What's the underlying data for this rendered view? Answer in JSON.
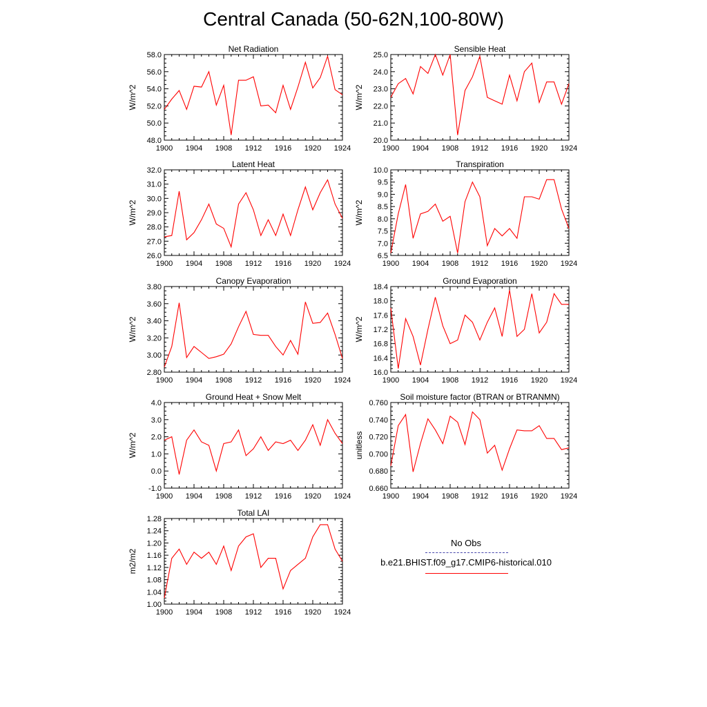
{
  "page_title": "Central Canada (50-62N,100-80W)",
  "legend": {
    "obs_label": "No Obs",
    "obs_color": "#4444aa",
    "model_label": "b.e21.BHIST.f09_g17.CMIP6-historical.010",
    "model_color": "#ff0000"
  },
  "chart_data": [
    {
      "type": "line",
      "title": "Net Radiation",
      "ylabel": "W/m^2",
      "xlim": [
        1900,
        1924
      ],
      "ylim": [
        48.0,
        58.0
      ],
      "xticks": [
        1900,
        1904,
        1908,
        1912,
        1916,
        1920,
        1924
      ],
      "yticks": [
        "48.0",
        "50.0",
        "52.0",
        "54.0",
        "56.0",
        "58.0"
      ],
      "x": [
        1900,
        1901,
        1902,
        1903,
        1904,
        1905,
        1906,
        1907,
        1908,
        1909,
        1910,
        1911,
        1912,
        1913,
        1914,
        1915,
        1916,
        1917,
        1918,
        1919,
        1920,
        1921,
        1922,
        1923,
        1924
      ],
      "values": [
        51.6,
        52.8,
        53.8,
        51.6,
        54.3,
        54.2,
        56.0,
        52.1,
        54.4,
        48.6,
        55.0,
        55.0,
        55.4,
        52.0,
        52.1,
        51.2,
        54.4,
        51.6,
        54.2,
        57.1,
        54.1,
        55.3,
        57.8,
        53.9,
        53.3
      ]
    },
    {
      "type": "line",
      "title": "Sensible Heat",
      "ylabel": "W/m^2",
      "xlim": [
        1900,
        1924
      ],
      "ylim": [
        20.0,
        25.0
      ],
      "xticks": [
        1900,
        1904,
        1908,
        1912,
        1916,
        1920,
        1924
      ],
      "yticks": [
        "20.0",
        "21.0",
        "22.0",
        "23.0",
        "24.0",
        "25.0"
      ],
      "x": [
        1900,
        1901,
        1902,
        1903,
        1904,
        1905,
        1906,
        1907,
        1908,
        1909,
        1910,
        1911,
        1912,
        1913,
        1914,
        1915,
        1916,
        1917,
        1918,
        1919,
        1920,
        1921,
        1922,
        1923,
        1924
      ],
      "values": [
        22.5,
        23.3,
        23.6,
        22.7,
        24.3,
        23.9,
        25.0,
        23.8,
        25.0,
        20.3,
        22.9,
        23.7,
        24.9,
        22.5,
        22.3,
        22.1,
        23.8,
        22.3,
        24.0,
        24.5,
        22.2,
        23.4,
        23.4,
        22.1,
        23.3
      ]
    },
    {
      "type": "line",
      "title": "Latent Heat",
      "ylabel": "W/m^2",
      "xlim": [
        1900,
        1924
      ],
      "ylim": [
        26.0,
        32.0
      ],
      "xticks": [
        1900,
        1904,
        1908,
        1912,
        1916,
        1920,
        1924
      ],
      "yticks": [
        "26.0",
        "27.0",
        "28.0",
        "29.0",
        "30.0",
        "31.0",
        "32.0"
      ],
      "x": [
        1900,
        1901,
        1902,
        1903,
        1904,
        1905,
        1906,
        1907,
        1908,
        1909,
        1910,
        1911,
        1912,
        1913,
        1914,
        1915,
        1916,
        1917,
        1918,
        1919,
        1920,
        1921,
        1922,
        1923,
        1924
      ],
      "values": [
        27.3,
        27.4,
        30.5,
        27.1,
        27.6,
        28.5,
        29.6,
        28.2,
        27.9,
        26.6,
        29.6,
        30.4,
        29.2,
        27.4,
        28.5,
        27.4,
        28.9,
        27.4,
        29.2,
        30.8,
        29.2,
        30.4,
        31.3,
        29.6,
        28.6
      ]
    },
    {
      "type": "line",
      "title": "Transpiration",
      "ylabel": "W/m^2",
      "xlim": [
        1900,
        1924
      ],
      "ylim": [
        6.5,
        10.0
      ],
      "xticks": [
        1900,
        1904,
        1908,
        1912,
        1916,
        1920,
        1924
      ],
      "yticks": [
        "6.5",
        "7.0",
        "7.5",
        "8.0",
        "8.5",
        "9.0",
        "9.5",
        "10.0"
      ],
      "x": [
        1900,
        1901,
        1902,
        1903,
        1904,
        1905,
        1906,
        1907,
        1908,
        1909,
        1910,
        1911,
        1912,
        1913,
        1914,
        1915,
        1916,
        1917,
        1918,
        1919,
        1920,
        1921,
        1922,
        1923,
        1924
      ],
      "values": [
        6.6,
        8.2,
        9.4,
        7.2,
        8.2,
        8.3,
        8.6,
        7.9,
        8.1,
        6.6,
        8.7,
        9.5,
        8.9,
        6.9,
        7.6,
        7.3,
        7.6,
        7.2,
        8.9,
        8.9,
        8.8,
        9.6,
        9.6,
        8.4,
        7.6
      ]
    },
    {
      "type": "line",
      "title": "Canopy Evaporation",
      "ylabel": "W/m^2",
      "xlim": [
        1900,
        1924
      ],
      "ylim": [
        2.8,
        3.8
      ],
      "xticks": [
        1900,
        1904,
        1908,
        1912,
        1916,
        1920,
        1924
      ],
      "yticks": [
        "2.80",
        "3.00",
        "3.20",
        "3.40",
        "3.60",
        "3.80"
      ],
      "x": [
        1900,
        1901,
        1902,
        1903,
        1904,
        1905,
        1906,
        1907,
        1908,
        1909,
        1910,
        1911,
        1912,
        1913,
        1914,
        1915,
        1916,
        1917,
        1918,
        1919,
        1920,
        1921,
        1922,
        1923,
        1924
      ],
      "values": [
        2.86,
        3.1,
        3.61,
        2.97,
        3.1,
        3.03,
        2.96,
        2.98,
        3.01,
        3.13,
        3.33,
        3.51,
        3.24,
        3.23,
        3.23,
        3.1,
        3.0,
        3.17,
        3.01,
        3.62,
        3.37,
        3.38,
        3.49,
        3.24,
        2.96
      ]
    },
    {
      "type": "line",
      "title": "Ground Evaporation",
      "ylabel": "W/m^2",
      "xlim": [
        1900,
        1924
      ],
      "ylim": [
        16.0,
        18.4
      ],
      "xticks": [
        1900,
        1904,
        1908,
        1912,
        1916,
        1920,
        1924
      ],
      "yticks": [
        "16.0",
        "16.4",
        "16.8",
        "17.2",
        "17.6",
        "18.0",
        "18.4"
      ],
      "x": [
        1900,
        1901,
        1902,
        1903,
        1904,
        1905,
        1906,
        1907,
        1908,
        1909,
        1910,
        1911,
        1912,
        1913,
        1914,
        1915,
        1916,
        1917,
        1918,
        1919,
        1920,
        1921,
        1922,
        1923,
        1924
      ],
      "values": [
        17.8,
        16.1,
        17.5,
        17.0,
        16.2,
        17.2,
        18.1,
        17.3,
        16.8,
        16.9,
        17.6,
        17.4,
        16.9,
        17.4,
        17.8,
        17.0,
        18.3,
        17.0,
        17.2,
        18.2,
        17.1,
        17.4,
        18.2,
        17.9,
        17.9
      ]
    },
    {
      "type": "line",
      "title": "Ground Heat + Snow Melt",
      "ylabel": "W/m^2",
      "xlim": [
        1900,
        1924
      ],
      "ylim": [
        -1.0,
        4.0
      ],
      "xticks": [
        1900,
        1904,
        1908,
        1912,
        1916,
        1920,
        1924
      ],
      "yticks": [
        "-1.0",
        "0.0",
        "1.0",
        "2.0",
        "3.0",
        "4.0"
      ],
      "x": [
        1900,
        1901,
        1902,
        1903,
        1904,
        1905,
        1906,
        1907,
        1908,
        1909,
        1910,
        1911,
        1912,
        1913,
        1914,
        1915,
        1916,
        1917,
        1918,
        1919,
        1920,
        1921,
        1922,
        1923,
        1924
      ],
      "values": [
        1.8,
        2.0,
        -0.2,
        1.8,
        2.4,
        1.7,
        1.5,
        0.0,
        1.6,
        1.7,
        2.4,
        0.9,
        1.3,
        2.0,
        1.2,
        1.7,
        1.6,
        1.8,
        1.2,
        1.8,
        2.7,
        1.5,
        3.0,
        2.2,
        1.6
      ]
    },
    {
      "type": "line",
      "title": "Soil moisture factor (BTRAN or BTRANMN)",
      "ylabel": "unitless",
      "xlim": [
        1900,
        1924
      ],
      "ylim": [
        0.66,
        0.76
      ],
      "xticks": [
        1900,
        1904,
        1908,
        1912,
        1916,
        1920,
        1924
      ],
      "yticks": [
        "0.660",
        "0.680",
        "0.700",
        "0.720",
        "0.740",
        "0.760"
      ],
      "x": [
        1900,
        1901,
        1902,
        1903,
        1904,
        1905,
        1906,
        1907,
        1908,
        1909,
        1910,
        1911,
        1912,
        1913,
        1914,
        1915,
        1916,
        1917,
        1918,
        1919,
        1920,
        1921,
        1922,
        1923,
        1924
      ],
      "values": [
        0.686,
        0.733,
        0.746,
        0.679,
        0.712,
        0.741,
        0.728,
        0.712,
        0.744,
        0.737,
        0.711,
        0.749,
        0.74,
        0.701,
        0.71,
        0.681,
        0.706,
        0.728,
        0.727,
        0.727,
        0.733,
        0.718,
        0.718,
        0.705,
        0.707
      ]
    },
    {
      "type": "line",
      "title": "Total LAI",
      "ylabel": "m2/m2",
      "xlim": [
        1900,
        1924
      ],
      "ylim": [
        1.0,
        1.28
      ],
      "xticks": [
        1900,
        1904,
        1908,
        1912,
        1916,
        1920,
        1924
      ],
      "yticks": [
        "1.00",
        "1.04",
        "1.08",
        "1.12",
        "1.16",
        "1.20",
        "1.24",
        "1.28"
      ],
      "x": [
        1900,
        1901,
        1902,
        1903,
        1904,
        1905,
        1906,
        1907,
        1908,
        1909,
        1910,
        1911,
        1912,
        1913,
        1914,
        1915,
        1916,
        1917,
        1918,
        1919,
        1920,
        1921,
        1922,
        1923,
        1924
      ],
      "values": [
        1.02,
        1.15,
        1.18,
        1.13,
        1.17,
        1.15,
        1.17,
        1.13,
        1.19,
        1.11,
        1.19,
        1.22,
        1.23,
        1.12,
        1.15,
        1.15,
        1.05,
        1.11,
        1.13,
        1.15,
        1.22,
        1.26,
        1.26,
        1.18,
        1.14
      ]
    }
  ]
}
